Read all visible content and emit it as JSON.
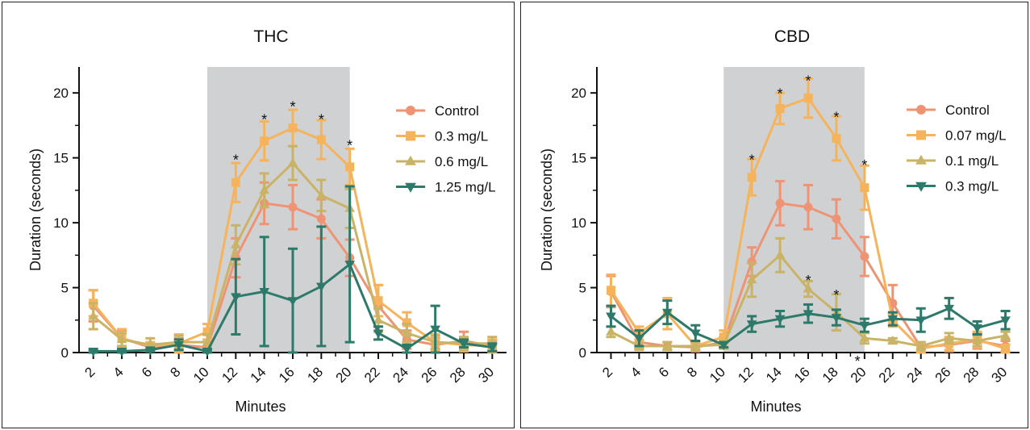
{
  "chart_data": [
    {
      "type": "line",
      "title": "THC",
      "xlabel": "Minutes",
      "ylabel": "Duration (seconds)",
      "xlim": [
        1,
        31
      ],
      "ylim": [
        0,
        22
      ],
      "xticks": [
        "2",
        "4",
        "6",
        "8",
        "10",
        "12",
        "14",
        "16",
        "18",
        "20",
        "22",
        "24",
        "26",
        "28",
        "30"
      ],
      "yticks": [
        "0",
        "5",
        "10",
        "15",
        "20"
      ],
      "shaded_region": [
        10,
        20
      ],
      "legend_position": "right",
      "grid": false,
      "x": [
        2,
        4,
        6,
        8,
        10,
        12,
        14,
        16,
        18,
        20,
        22,
        24,
        26,
        28,
        30
      ],
      "series": [
        {
          "name": "Control",
          "color": "#ee9474",
          "marker": "circle",
          "values": [
            3.6,
            1.1,
            0.4,
            0.6,
            0.4,
            7.3,
            11.5,
            11.2,
            10.3,
            7.3,
            3.6,
            1.0,
            0.6,
            0.9,
            0.5
          ],
          "errors": [
            1.2,
            0.6,
            0.3,
            0.5,
            0.4,
            1.5,
            1.6,
            1.7,
            1.5,
            1.4,
            1.6,
            0.7,
            0.5,
            0.7,
            0.4
          ]
        },
        {
          "name": "0.3 mg/L",
          "color": "#f5b45c",
          "marker": "square",
          "values": [
            3.8,
            1.1,
            0.5,
            0.7,
            1.6,
            13.1,
            16.3,
            17.3,
            16.4,
            14.3,
            4.0,
            2.3,
            0.8,
            0.6,
            0.5
          ],
          "errors": [
            1.0,
            0.7,
            0.3,
            0.7,
            0.6,
            1.5,
            1.5,
            1.4,
            1.5,
            1.4,
            1.2,
            0.8,
            0.6,
            0.5,
            0.5
          ]
        },
        {
          "name": "0.6 mg/L",
          "color": "#c9b366",
          "marker": "triangle-up",
          "values": [
            2.8,
            1.0,
            0.6,
            0.8,
            0.8,
            8.3,
            12.5,
            14.6,
            12.1,
            11.1,
            2.5,
            1.5,
            0.8,
            0.7,
            0.7
          ],
          "errors": [
            1.0,
            0.5,
            0.5,
            0.5,
            0.6,
            1.5,
            1.3,
            1.3,
            1.2,
            1.5,
            0.9,
            0.7,
            0.5,
            0.5,
            0.5
          ]
        },
        {
          "name": "1.25 mg/L",
          "color": "#2e7a6a",
          "marker": "triangle-down",
          "values": [
            0.1,
            0.1,
            0.2,
            0.6,
            0.1,
            4.3,
            4.7,
            4.0,
            5.1,
            6.8,
            1.5,
            0.3,
            1.8,
            0.7,
            0.4
          ],
          "errors": [
            0.1,
            0.1,
            0.1,
            0.4,
            0.1,
            2.9,
            4.2,
            4.0,
            4.6,
            6.0,
            0.5,
            0.3,
            1.8,
            0.3,
            0.3
          ]
        }
      ],
      "annotations": [
        {
          "text": "*",
          "x": 12,
          "y": 15.2
        },
        {
          "text": "*",
          "x": 14,
          "y": 18.3
        },
        {
          "text": "*",
          "x": 16,
          "y": 19.3
        },
        {
          "text": "*",
          "x": 18,
          "y": 18.3
        },
        {
          "text": "*",
          "x": 20,
          "y": 16.3
        }
      ]
    },
    {
      "type": "line",
      "title": "CBD",
      "xlabel": "Minutes",
      "ylabel": "Duration (seconds)",
      "xlim": [
        1,
        31
      ],
      "ylim": [
        0,
        22
      ],
      "xticks": [
        "2",
        "4",
        "6",
        "8",
        "10",
        "12",
        "14",
        "16",
        "18",
        "20",
        "22",
        "24",
        "26",
        "28",
        "30"
      ],
      "yticks": [
        "0",
        "5",
        "10",
        "15",
        "20"
      ],
      "shaded_region": [
        10,
        20
      ],
      "legend_position": "right",
      "grid": false,
      "x": [
        2,
        4,
        6,
        8,
        10,
        12,
        14,
        16,
        18,
        20,
        22,
        24,
        26,
        28,
        30
      ],
      "series": [
        {
          "name": "Control",
          "color": "#ee9474",
          "marker": "circle",
          "values": [
            4.7,
            0.8,
            0.5,
            0.4,
            0.8,
            7.0,
            11.5,
            11.2,
            10.3,
            7.4,
            3.8,
            0.4,
            0.6,
            0.9,
            0.5
          ],
          "errors": [
            1.2,
            0.5,
            0.3,
            0.3,
            0.4,
            1.1,
            1.7,
            1.7,
            1.5,
            1.5,
            1.4,
            0.4,
            0.5,
            0.6,
            0.4
          ]
        },
        {
          "name": "0.07 mg/L",
          "color": "#f5b45c",
          "marker": "square",
          "values": [
            4.8,
            1.5,
            3.0,
            0.5,
            1.2,
            13.5,
            18.8,
            19.6,
            16.5,
            12.7,
            2.5,
            0.3,
            0.7,
            1.0,
            0.3
          ],
          "errors": [
            1.2,
            0.5,
            1.2,
            0.3,
            0.5,
            1.4,
            1.2,
            1.5,
            1.7,
            1.7,
            0.5,
            0.3,
            0.5,
            0.6,
            0.3
          ]
        },
        {
          "name": "0.1 mg/L",
          "color": "#c9b366",
          "marker": "triangle-up",
          "values": [
            1.6,
            0.5,
            0.5,
            0.5,
            0.6,
            5.6,
            7.5,
            4.9,
            3.1,
            1.1,
            0.9,
            0.5,
            1.1,
            0.9,
            1.3
          ],
          "errors": [
            0.4,
            0.3,
            0.3,
            0.3,
            0.3,
            1.3,
            1.3,
            0.6,
            1.4,
            0.4,
            0.2,
            0.3,
            0.4,
            0.4,
            0.3
          ]
        },
        {
          "name": "0.3 mg/L",
          "color": "#2e7a6a",
          "marker": "triangle-down",
          "values": [
            2.8,
            1.1,
            3.1,
            1.5,
            0.6,
            2.2,
            2.6,
            3.0,
            2.7,
            2.1,
            2.6,
            2.5,
            3.4,
            1.9,
            2.5
          ],
          "errors": [
            0.8,
            0.6,
            0.9,
            0.6,
            0.2,
            0.6,
            0.6,
            0.7,
            0.6,
            0.5,
            0.5,
            0.9,
            0.8,
            0.5,
            0.7
          ]
        }
      ],
      "annotations": [
        {
          "text": "*",
          "x": 12,
          "y": 15.2
        },
        {
          "text": "*",
          "x": 14,
          "y": 20.3
        },
        {
          "text": "*",
          "x": 16,
          "y": 21.3
        },
        {
          "text": "*",
          "x": 18,
          "y": 18.5
        },
        {
          "text": "*",
          "x": 20,
          "y": 14.8
        },
        {
          "text": "*",
          "x": 16,
          "y": 5.9
        },
        {
          "text": "*",
          "x": 18,
          "y": 4.8
        },
        {
          "text": "*",
          "x": 19.5,
          "y": -0.3
        }
      ]
    }
  ]
}
